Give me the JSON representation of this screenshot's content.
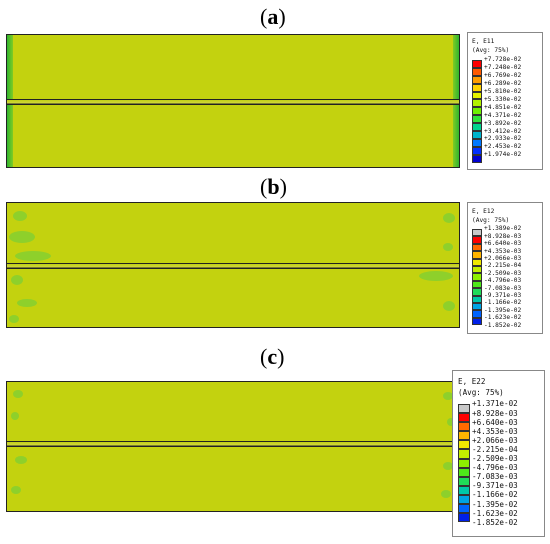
{
  "panels": [
    {
      "label": "a",
      "legend": {
        "title1": "E, E11",
        "title2": "(Avg: 75%)",
        "colors": [
          "#ff0000",
          "#ff5a00",
          "#ff9c00",
          "#ffd200",
          "#e5f200",
          "#b2f200",
          "#6ef000",
          "#2ee43a",
          "#00d38e",
          "#00b4cd",
          "#0078ff",
          "#0030ff",
          "#0000d0"
        ],
        "values": [
          "+7.728e-02",
          "+7.248e-02",
          "+6.769e-02",
          "+6.289e-02",
          "+5.810e-02",
          "+5.330e-02",
          "+4.851e-02",
          "+4.371e-02",
          "+3.892e-02",
          "+3.412e-02",
          "+2.933e-02",
          "+2.453e-02",
          "+1.974e-02"
        ]
      }
    },
    {
      "label": "b",
      "legend": {
        "title1": "E, E12",
        "title2": "(Avg: 75%)",
        "colors": [
          "#c8c8c8",
          "#ff0000",
          "#ff6a00",
          "#ffb400",
          "#f0e800",
          "#c4ee00",
          "#8ef000",
          "#4ee81a",
          "#20dc58",
          "#00c8a8",
          "#00a4e4",
          "#0064ff",
          "#0020e8"
        ],
        "values": [
          "+1.389e-02",
          "+8.928e-03",
          "+6.640e-03",
          "+4.353e-03",
          "+2.066e-03",
          "-2.215e-04",
          "-2.509e-03",
          "-4.796e-03",
          "-7.083e-03",
          "-9.371e-03",
          "-1.166e-02",
          "-1.395e-02",
          "-1.623e-02",
          "-1.852e-02"
        ]
      }
    },
    {
      "label": "c",
      "legend": {
        "title1": "E, E22",
        "title2": "(Avg: 75%)",
        "colors": [
          "#c8c8c8",
          "#ff0000",
          "#ff6a00",
          "#ffb400",
          "#f0e800",
          "#c4ee00",
          "#8ef000",
          "#4ee81a",
          "#20dc58",
          "#00c8a8",
          "#00a4e4",
          "#0064ff",
          "#0020e8"
        ],
        "values": [
          "+1.371e-02",
          "+8.928e-03",
          "+6.640e-03",
          "+4.353e-03",
          "+2.066e-03",
          "-2.215e-04",
          "-2.509e-03",
          "-4.796e-03",
          "-7.083e-03",
          "-9.371e-03",
          "-1.166e-02",
          "-1.395e-02",
          "-1.623e-02",
          "-1.852e-02"
        ]
      }
    }
  ]
}
